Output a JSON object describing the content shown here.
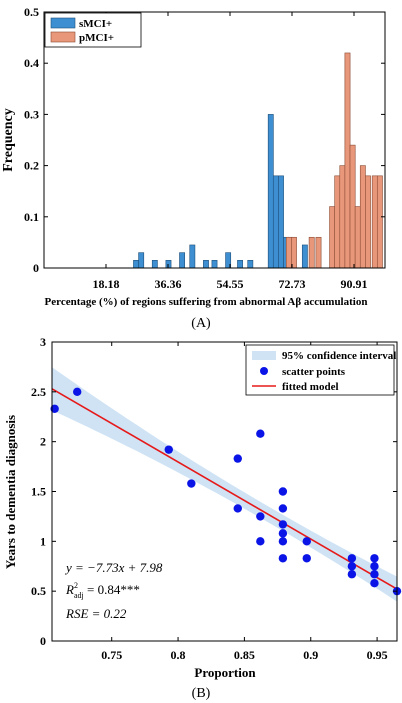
{
  "chart_data": [
    {
      "type": "bar",
      "panel_label": "(A)",
      "xlabel": "Percentage (%) of regions suffering from abnormal Aβ accumulation",
      "ylabel": "Frequency",
      "xlim": [
        0,
        100
      ],
      "ylim": [
        0,
        0.5
      ],
      "xticks": [
        "18.18",
        "36.36",
        "54.55",
        "72.73",
        "90.91"
      ],
      "xtick_values": [
        18.18,
        36.36,
        54.55,
        72.73,
        90.91
      ],
      "yticks": [
        "0",
        "0.1",
        "0.2",
        "0.3",
        "0.4",
        "0.5"
      ],
      "ytick_values": [
        0,
        0.1,
        0.2,
        0.3,
        0.4,
        0.5
      ],
      "legend_position": "top-left",
      "series": [
        {
          "name": "sMCI+",
          "color": "#3d8fd1",
          "x": [
            27,
            28.5,
            32.5,
            36.5,
            40.5,
            43.5,
            47.5,
            50,
            54,
            57.5,
            60.5,
            66.5,
            68,
            69.5,
            71,
            72.5,
            76.5
          ],
          "values": [
            0.015,
            0.03,
            0.015,
            0.015,
            0.03,
            0.045,
            0.015,
            0.015,
            0.03,
            0.015,
            0.015,
            0.3,
            0.18,
            0.18,
            0.06,
            0.06,
            0.045
          ]
        },
        {
          "name": "pMCI+",
          "color": "#e8977a",
          "x": [
            71.8,
            73.3,
            78.5,
            80.5,
            84.5,
            86,
            87.5,
            89,
            90.5,
            92,
            93.5,
            95,
            97,
            98.5
          ],
          "values": [
            0.06,
            0.06,
            0.06,
            0.06,
            0.12,
            0.18,
            0.2,
            0.42,
            0.24,
            0.12,
            0.2,
            0.18,
            0.18,
            0.18
          ]
        }
      ]
    },
    {
      "type": "scatter",
      "panel_label": "(B)",
      "xlabel": "Proportion",
      "ylabel": "Years to dementia diagnosis",
      "xlim": [
        0.705,
        0.965
      ],
      "ylim": [
        0,
        3
      ],
      "xticks": [
        "0.75",
        "0.8",
        "0.85",
        "0.9",
        "0.95"
      ],
      "xtick_values": [
        0.75,
        0.8,
        0.85,
        0.9,
        0.95
      ],
      "yticks": [
        "0",
        "0.5",
        "1",
        "1.5",
        "2",
        "2.5",
        "3"
      ],
      "ytick_values": [
        0,
        0.5,
        1,
        1.5,
        2,
        2.5,
        3
      ],
      "legend_position": "top-right",
      "legend": {
        "ci": "95% confidence interval",
        "points": "scatter points",
        "fit": "fitted model"
      },
      "colors": {
        "points": "#0a14e6",
        "fit": "#e61a1a",
        "ci": "#cfe3f5"
      },
      "fit": {
        "slope": -7.73,
        "intercept": 7.98
      },
      "annotations": {
        "equation": "y = −7.73x + 7.98",
        "r2_prefix": "R",
        "r2_sup": "2",
        "r2_sub": "adj",
        "r2_value": " = 0.84***",
        "rse": "RSE = 0.22"
      },
      "points": [
        {
          "x": 0.707,
          "y": 2.33
        },
        {
          "x": 0.724,
          "y": 2.5
        },
        {
          "x": 0.793,
          "y": 1.92
        },
        {
          "x": 0.81,
          "y": 1.58
        },
        {
          "x": 0.845,
          "y": 1.83
        },
        {
          "x": 0.845,
          "y": 1.33
        },
        {
          "x": 0.862,
          "y": 2.08
        },
        {
          "x": 0.862,
          "y": 1.25
        },
        {
          "x": 0.862,
          "y": 1.0
        },
        {
          "x": 0.879,
          "y": 1.5
        },
        {
          "x": 0.879,
          "y": 1.33
        },
        {
          "x": 0.879,
          "y": 1.17
        },
        {
          "x": 0.879,
          "y": 1.08
        },
        {
          "x": 0.879,
          "y": 1.0
        },
        {
          "x": 0.879,
          "y": 0.83
        },
        {
          "x": 0.897,
          "y": 1.0
        },
        {
          "x": 0.897,
          "y": 0.83
        },
        {
          "x": 0.931,
          "y": 0.83
        },
        {
          "x": 0.931,
          "y": 0.75
        },
        {
          "x": 0.931,
          "y": 0.67
        },
        {
          "x": 0.948,
          "y": 0.83
        },
        {
          "x": 0.948,
          "y": 0.75
        },
        {
          "x": 0.948,
          "y": 0.67
        },
        {
          "x": 0.948,
          "y": 0.58
        },
        {
          "x": 0.965,
          "y": 0.5
        }
      ]
    }
  ]
}
